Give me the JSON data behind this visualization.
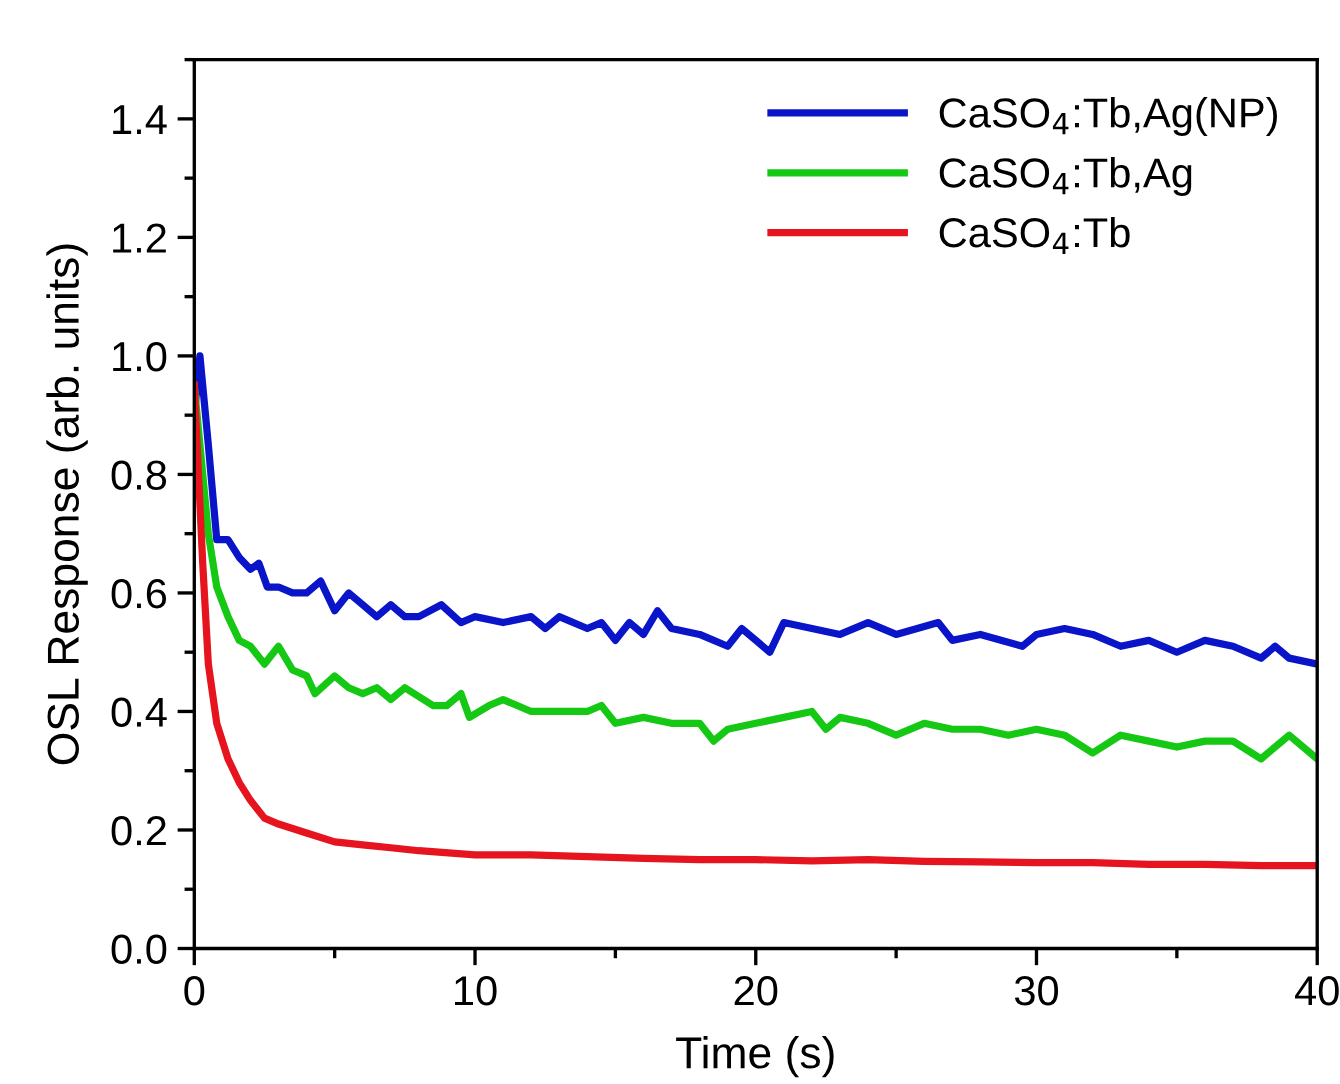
{
  "chart_data": {
    "type": "line",
    "xlabel": "Time (s)",
    "ylabel": "OSL Response (arb. units)",
    "xlim": [
      0,
      40
    ],
    "xticks": [
      0,
      10,
      20,
      30,
      40
    ],
    "ylim": [
      0,
      1.5
    ],
    "yticks": [
      {
        "value": 0,
        "label": "0.0"
      },
      0.2,
      0.4,
      0.6,
      0.8,
      {
        "value": 1,
        "label": "1.0"
      },
      1.2,
      1.4
    ],
    "grid": false,
    "legend": "top right",
    "marker": "none",
    "line_style": "solid",
    "series": [
      {
        "name": "CaSO$_{4}$:Tb,Ag(NP)",
        "color": "#0a14c8",
        "x": [
          0,
          0.2,
          0.5,
          0.8,
          1.2,
          1.6,
          2,
          2.3,
          2.6,
          3,
          3.5,
          4,
          4.5,
          5,
          5.5,
          6,
          6.5,
          7,
          7.5,
          8,
          8.8,
          9.5,
          10,
          11,
          12,
          12.5,
          13,
          14,
          14.5,
          15,
          15.5,
          16,
          16.5,
          17,
          18,
          19,
          19.5,
          20,
          20.5,
          21,
          22,
          23,
          24,
          25,
          26.5,
          27,
          28,
          29.5,
          30,
          31,
          32,
          33,
          34,
          35,
          36,
          37,
          38,
          38.5,
          39,
          40
        ],
        "values": [
          0.9,
          1.0,
          0.85,
          0.69,
          0.69,
          0.66,
          0.64,
          0.65,
          0.61,
          0.61,
          0.6,
          0.6,
          0.62,
          0.57,
          0.6,
          0.58,
          0.56,
          0.58,
          0.56,
          0.56,
          0.58,
          0.55,
          0.56,
          0.55,
          0.56,
          0.54,
          0.56,
          0.54,
          0.55,
          0.52,
          0.55,
          0.53,
          0.57,
          0.54,
          0.53,
          0.51,
          0.54,
          0.52,
          0.5,
          0.55,
          0.54,
          0.53,
          0.55,
          0.53,
          0.55,
          0.52,
          0.53,
          0.51,
          0.53,
          0.54,
          0.53,
          0.51,
          0.52,
          0.5,
          0.52,
          0.51,
          0.49,
          0.51,
          0.49,
          0.48
        ]
      },
      {
        "name": "CaSO$_{4}$:Tb,Ag",
        "color": "#14c814",
        "x": [
          0,
          0.2,
          0.5,
          0.8,
          1.2,
          1.6,
          2,
          2.5,
          3,
          3.5,
          4,
          4.3,
          5,
          5.5,
          6,
          6.5,
          7,
          7.5,
          8.5,
          9,
          9.5,
          9.8,
          10.5,
          11,
          12,
          13,
          14,
          14.5,
          15,
          16,
          17,
          18,
          18.5,
          19,
          20,
          21,
          22,
          22.5,
          23,
          24,
          25,
          26,
          27,
          28,
          29,
          30,
          31,
          32,
          33,
          34,
          35,
          36,
          37,
          38,
          39,
          40
        ],
        "values": [
          0.95,
          0.85,
          0.7,
          0.61,
          0.56,
          0.52,
          0.51,
          0.48,
          0.51,
          0.47,
          0.46,
          0.43,
          0.46,
          0.44,
          0.43,
          0.44,
          0.42,
          0.44,
          0.41,
          0.41,
          0.43,
          0.39,
          0.41,
          0.42,
          0.4,
          0.4,
          0.4,
          0.41,
          0.38,
          0.39,
          0.38,
          0.38,
          0.35,
          0.37,
          0.38,
          0.39,
          0.4,
          0.37,
          0.39,
          0.38,
          0.36,
          0.38,
          0.37,
          0.37,
          0.36,
          0.37,
          0.36,
          0.33,
          0.36,
          0.35,
          0.34,
          0.35,
          0.35,
          0.32,
          0.36,
          0.32
        ]
      },
      {
        "name": "CaSO$_{4}$:Tb",
        "color": "#e6141e",
        "x": [
          0,
          0.1,
          0.3,
          0.5,
          0.8,
          1.2,
          1.6,
          2,
          2.5,
          3,
          4,
          5,
          6,
          7,
          8,
          10,
          12,
          14,
          16,
          18,
          20,
          22,
          24,
          26,
          28,
          30,
          32,
          34,
          36,
          38,
          40
        ],
        "values": [
          0.95,
          0.85,
          0.65,
          0.48,
          0.38,
          0.32,
          0.28,
          0.25,
          0.22,
          0.21,
          0.195,
          0.18,
          0.175,
          0.17,
          0.165,
          0.158,
          0.158,
          0.155,
          0.152,
          0.15,
          0.15,
          0.148,
          0.15,
          0.147,
          0.146,
          0.145,
          0.145,
          0.142,
          0.142,
          0.14,
          0.14
        ]
      }
    ]
  }
}
